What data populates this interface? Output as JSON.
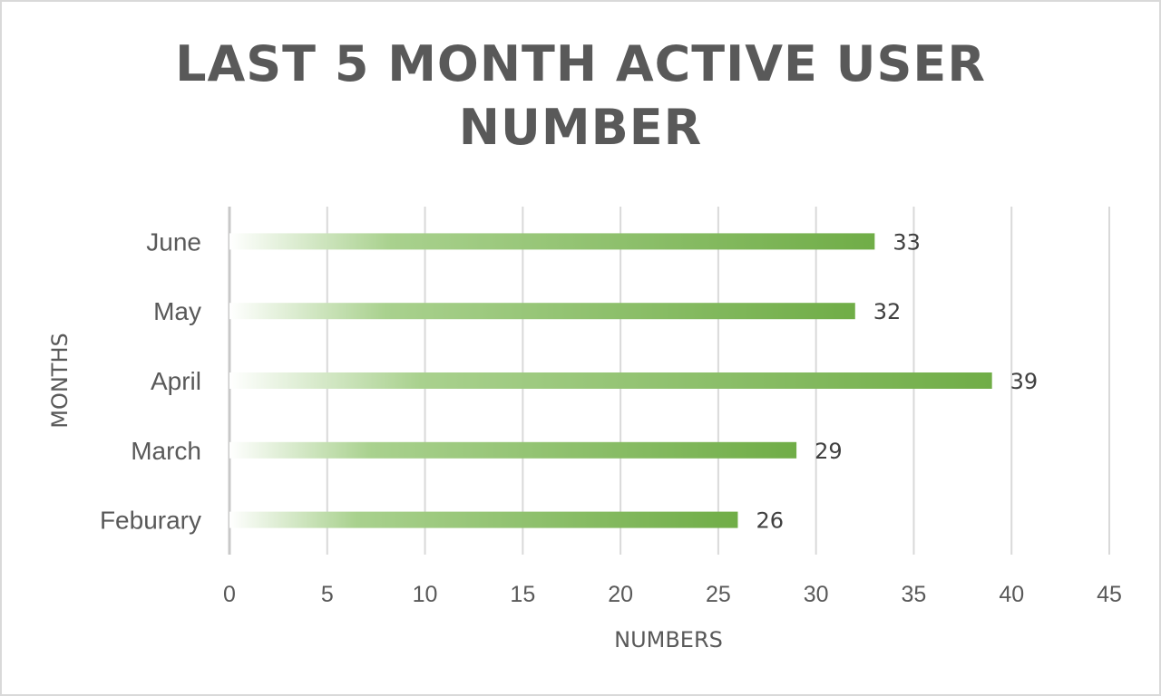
{
  "chart_data": {
    "type": "bar",
    "orientation": "horizontal",
    "title_lines": [
      "LAST 5 MONTH ACTIVE USER",
      "NUMBER"
    ],
    "xlabel": "NUMBERS",
    "ylabel": "MONTHS",
    "categories": [
      "Feburary",
      "March",
      "April",
      "May",
      "June"
    ],
    "values": [
      26,
      29,
      39,
      32,
      33
    ],
    "xlim": [
      0,
      45
    ],
    "xticks": [
      0,
      5,
      10,
      15,
      20,
      25,
      30,
      35,
      40,
      45
    ],
    "grid": true,
    "legend": "none",
    "bar_color_start": "#ffffff",
    "bar_color_mid": "#a9d18e",
    "bar_color_end": "#70ad47",
    "gridline_color": "#d9d9d9"
  }
}
